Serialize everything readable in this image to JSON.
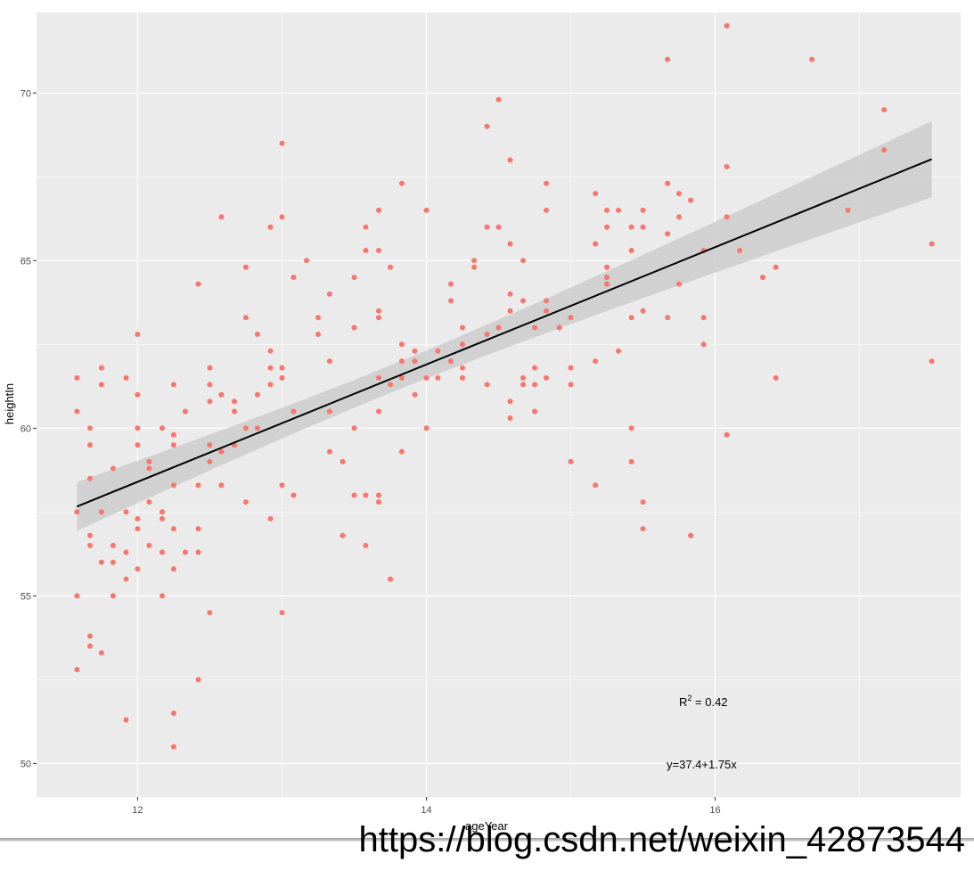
{
  "chart_data": {
    "type": "scatter",
    "xlabel": "ageYear",
    "ylabel": "heightIn",
    "xlim": [
      11.3,
      17.7
    ],
    "ylim": [
      49.0,
      72.4
    ],
    "x_ticks": [
      12,
      14,
      16
    ],
    "y_ticks": [
      50,
      55,
      60,
      65,
      70
    ],
    "grid": true,
    "colors": {
      "panel": "#ebebeb",
      "grid": "#ffffff",
      "points": "#f8766d",
      "fit": "#000000",
      "band": "#cccccc"
    },
    "fit": {
      "intercept": 37.4,
      "slope": 1.75,
      "x_range": [
        11.58,
        17.5
      ]
    },
    "annotations": {
      "r2": "R",
      "r2_sup": "2",
      "r2_rest": " = 0.42",
      "equation": "y=37.4+1.75x"
    },
    "points": [
      [
        11.58,
        61.5
      ],
      [
        11.58,
        60.5
      ],
      [
        11.58,
        57.5
      ],
      [
        11.58,
        55.0
      ],
      [
        11.58,
        52.8
      ],
      [
        11.67,
        60.0
      ],
      [
        11.67,
        59.5
      ],
      [
        11.67,
        58.5
      ],
      [
        11.67,
        56.8
      ],
      [
        11.67,
        56.5
      ],
      [
        11.67,
        53.8
      ],
      [
        11.67,
        53.5
      ],
      [
        11.75,
        61.8
      ],
      [
        11.75,
        61.3
      ],
      [
        11.75,
        57.5
      ],
      [
        11.75,
        56.0
      ],
      [
        11.75,
        53.3
      ],
      [
        11.83,
        58.8
      ],
      [
        11.83,
        56.5
      ],
      [
        11.83,
        56.0
      ],
      [
        11.83,
        55.0
      ],
      [
        11.92,
        61.5
      ],
      [
        11.92,
        57.5
      ],
      [
        11.92,
        56.3
      ],
      [
        11.92,
        55.5
      ],
      [
        11.92,
        51.3
      ],
      [
        12.0,
        62.8
      ],
      [
        12.0,
        61.0
      ],
      [
        12.0,
        60.0
      ],
      [
        12.0,
        59.5
      ],
      [
        12.0,
        57.3
      ],
      [
        12.0,
        57.0
      ],
      [
        12.0,
        55.8
      ],
      [
        12.08,
        59.0
      ],
      [
        12.08,
        58.8
      ],
      [
        12.08,
        57.8
      ],
      [
        12.08,
        56.5
      ],
      [
        12.17,
        60.0
      ],
      [
        12.17,
        57.5
      ],
      [
        12.17,
        57.3
      ],
      [
        12.17,
        56.3
      ],
      [
        12.17,
        55.0
      ],
      [
        12.25,
        61.3
      ],
      [
        12.25,
        59.8
      ],
      [
        12.25,
        59.5
      ],
      [
        12.25,
        58.3
      ],
      [
        12.25,
        57.0
      ],
      [
        12.25,
        55.8
      ],
      [
        12.25,
        51.5
      ],
      [
        12.25,
        50.5
      ],
      [
        12.33,
        60.5
      ],
      [
        12.33,
        56.3
      ],
      [
        12.42,
        64.3
      ],
      [
        12.42,
        58.3
      ],
      [
        12.42,
        57.0
      ],
      [
        12.42,
        56.3
      ],
      [
        12.42,
        52.5
      ],
      [
        12.5,
        61.8
      ],
      [
        12.5,
        61.3
      ],
      [
        12.5,
        60.8
      ],
      [
        12.5,
        59.5
      ],
      [
        12.5,
        59.0
      ],
      [
        12.5,
        54.5
      ],
      [
        12.58,
        66.3
      ],
      [
        12.58,
        61.0
      ],
      [
        12.58,
        59.3
      ],
      [
        12.58,
        58.3
      ],
      [
        12.67,
        60.8
      ],
      [
        12.67,
        60.5
      ],
      [
        12.67,
        59.5
      ],
      [
        12.75,
        64.8
      ],
      [
        12.75,
        63.3
      ],
      [
        12.75,
        60.0
      ],
      [
        12.75,
        57.8
      ],
      [
        12.83,
        62.8
      ],
      [
        12.83,
        61.0
      ],
      [
        12.83,
        60.0
      ],
      [
        12.92,
        66.0
      ],
      [
        12.92,
        62.3
      ],
      [
        12.92,
        61.8
      ],
      [
        12.92,
        61.3
      ],
      [
        12.92,
        57.3
      ],
      [
        13.0,
        68.5
      ],
      [
        13.0,
        66.3
      ],
      [
        13.0,
        61.8
      ],
      [
        13.0,
        61.5
      ],
      [
        13.0,
        58.3
      ],
      [
        13.0,
        54.5
      ],
      [
        13.08,
        64.5
      ],
      [
        13.08,
        60.5
      ],
      [
        13.08,
        58.0
      ],
      [
        13.17,
        65.0
      ],
      [
        13.25,
        63.3
      ],
      [
        13.25,
        62.8
      ],
      [
        13.33,
        64.0
      ],
      [
        13.33,
        62.0
      ],
      [
        13.33,
        60.5
      ],
      [
        13.33,
        59.3
      ],
      [
        13.42,
        59.0
      ],
      [
        13.42,
        56.8
      ],
      [
        13.5,
        64.5
      ],
      [
        13.5,
        63.0
      ],
      [
        13.5,
        60.0
      ],
      [
        13.5,
        58.0
      ],
      [
        13.58,
        66.0
      ],
      [
        13.58,
        65.3
      ],
      [
        13.58,
        58.0
      ],
      [
        13.58,
        56.5
      ],
      [
        13.67,
        66.5
      ],
      [
        13.67,
        65.3
      ],
      [
        13.67,
        63.5
      ],
      [
        13.67,
        63.3
      ],
      [
        13.67,
        61.5
      ],
      [
        13.67,
        60.5
      ],
      [
        13.67,
        58.0
      ],
      [
        13.67,
        57.8
      ],
      [
        13.75,
        64.8
      ],
      [
        13.75,
        61.3
      ],
      [
        13.75,
        55.5
      ],
      [
        13.83,
        67.3
      ],
      [
        13.83,
        62.5
      ],
      [
        13.83,
        62.0
      ],
      [
        13.83,
        61.5
      ],
      [
        13.83,
        59.3
      ],
      [
        13.92,
        62.3
      ],
      [
        13.92,
        62.0
      ],
      [
        13.92,
        61.0
      ],
      [
        14.0,
        66.5
      ],
      [
        14.0,
        61.5
      ],
      [
        14.0,
        60.0
      ],
      [
        14.08,
        62.3
      ],
      [
        14.08,
        61.5
      ],
      [
        14.17,
        64.3
      ],
      [
        14.17,
        63.8
      ],
      [
        14.17,
        62.0
      ],
      [
        14.25,
        63.0
      ],
      [
        14.25,
        62.5
      ],
      [
        14.25,
        61.8
      ],
      [
        14.25,
        61.5
      ],
      [
        14.33,
        65.0
      ],
      [
        14.33,
        64.8
      ],
      [
        14.42,
        69.0
      ],
      [
        14.42,
        66.0
      ],
      [
        14.42,
        62.8
      ],
      [
        14.42,
        61.3
      ],
      [
        14.5,
        69.8
      ],
      [
        14.5,
        66.0
      ],
      [
        14.5,
        63.0
      ],
      [
        14.58,
        68.0
      ],
      [
        14.58,
        65.5
      ],
      [
        14.58,
        64.0
      ],
      [
        14.58,
        63.5
      ],
      [
        14.58,
        60.8
      ],
      [
        14.58,
        60.3
      ],
      [
        14.67,
        65.0
      ],
      [
        14.67,
        63.8
      ],
      [
        14.67,
        61.5
      ],
      [
        14.67,
        61.3
      ],
      [
        14.75,
        63.0
      ],
      [
        14.75,
        61.8
      ],
      [
        14.75,
        61.3
      ],
      [
        14.75,
        60.5
      ],
      [
        14.83,
        67.3
      ],
      [
        14.83,
        66.5
      ],
      [
        14.83,
        63.8
      ],
      [
        14.83,
        63.5
      ],
      [
        14.83,
        61.5
      ],
      [
        14.92,
        63.0
      ],
      [
        15.0,
        63.3
      ],
      [
        15.0,
        61.8
      ],
      [
        15.0,
        61.3
      ],
      [
        15.0,
        59.0
      ],
      [
        15.17,
        67.0
      ],
      [
        15.17,
        65.5
      ],
      [
        15.17,
        62.0
      ],
      [
        15.17,
        58.3
      ],
      [
        15.25,
        66.5
      ],
      [
        15.25,
        66.0
      ],
      [
        15.25,
        64.8
      ],
      [
        15.25,
        64.5
      ],
      [
        15.25,
        64.3
      ],
      [
        15.33,
        66.5
      ],
      [
        15.33,
        62.3
      ],
      [
        15.42,
        66.0
      ],
      [
        15.42,
        65.3
      ],
      [
        15.42,
        63.3
      ],
      [
        15.42,
        60.0
      ],
      [
        15.42,
        59.0
      ],
      [
        15.5,
        66.5
      ],
      [
        15.5,
        66.0
      ],
      [
        15.5,
        63.5
      ],
      [
        15.5,
        57.8
      ],
      [
        15.5,
        57.0
      ],
      [
        15.67,
        71.0
      ],
      [
        15.67,
        67.3
      ],
      [
        15.67,
        65.8
      ],
      [
        15.67,
        63.3
      ],
      [
        15.75,
        67.0
      ],
      [
        15.75,
        66.3
      ],
      [
        15.75,
        64.3
      ],
      [
        15.83,
        66.8
      ],
      [
        15.83,
        56.8
      ],
      [
        15.92,
        65.3
      ],
      [
        15.92,
        63.3
      ],
      [
        15.92,
        62.5
      ],
      [
        16.08,
        72.0
      ],
      [
        16.08,
        67.8
      ],
      [
        16.08,
        66.3
      ],
      [
        16.08,
        59.8
      ],
      [
        16.17,
        65.3
      ],
      [
        16.33,
        64.5
      ],
      [
        16.42,
        64.8
      ],
      [
        16.42,
        61.5
      ],
      [
        16.67,
        71.0
      ],
      [
        16.92,
        66.5
      ],
      [
        17.17,
        69.5
      ],
      [
        17.17,
        68.3
      ],
      [
        17.5,
        65.5
      ],
      [
        17.5,
        62.0
      ]
    ]
  },
  "watermark": "https://blog.csdn.net/weixin_42873544"
}
